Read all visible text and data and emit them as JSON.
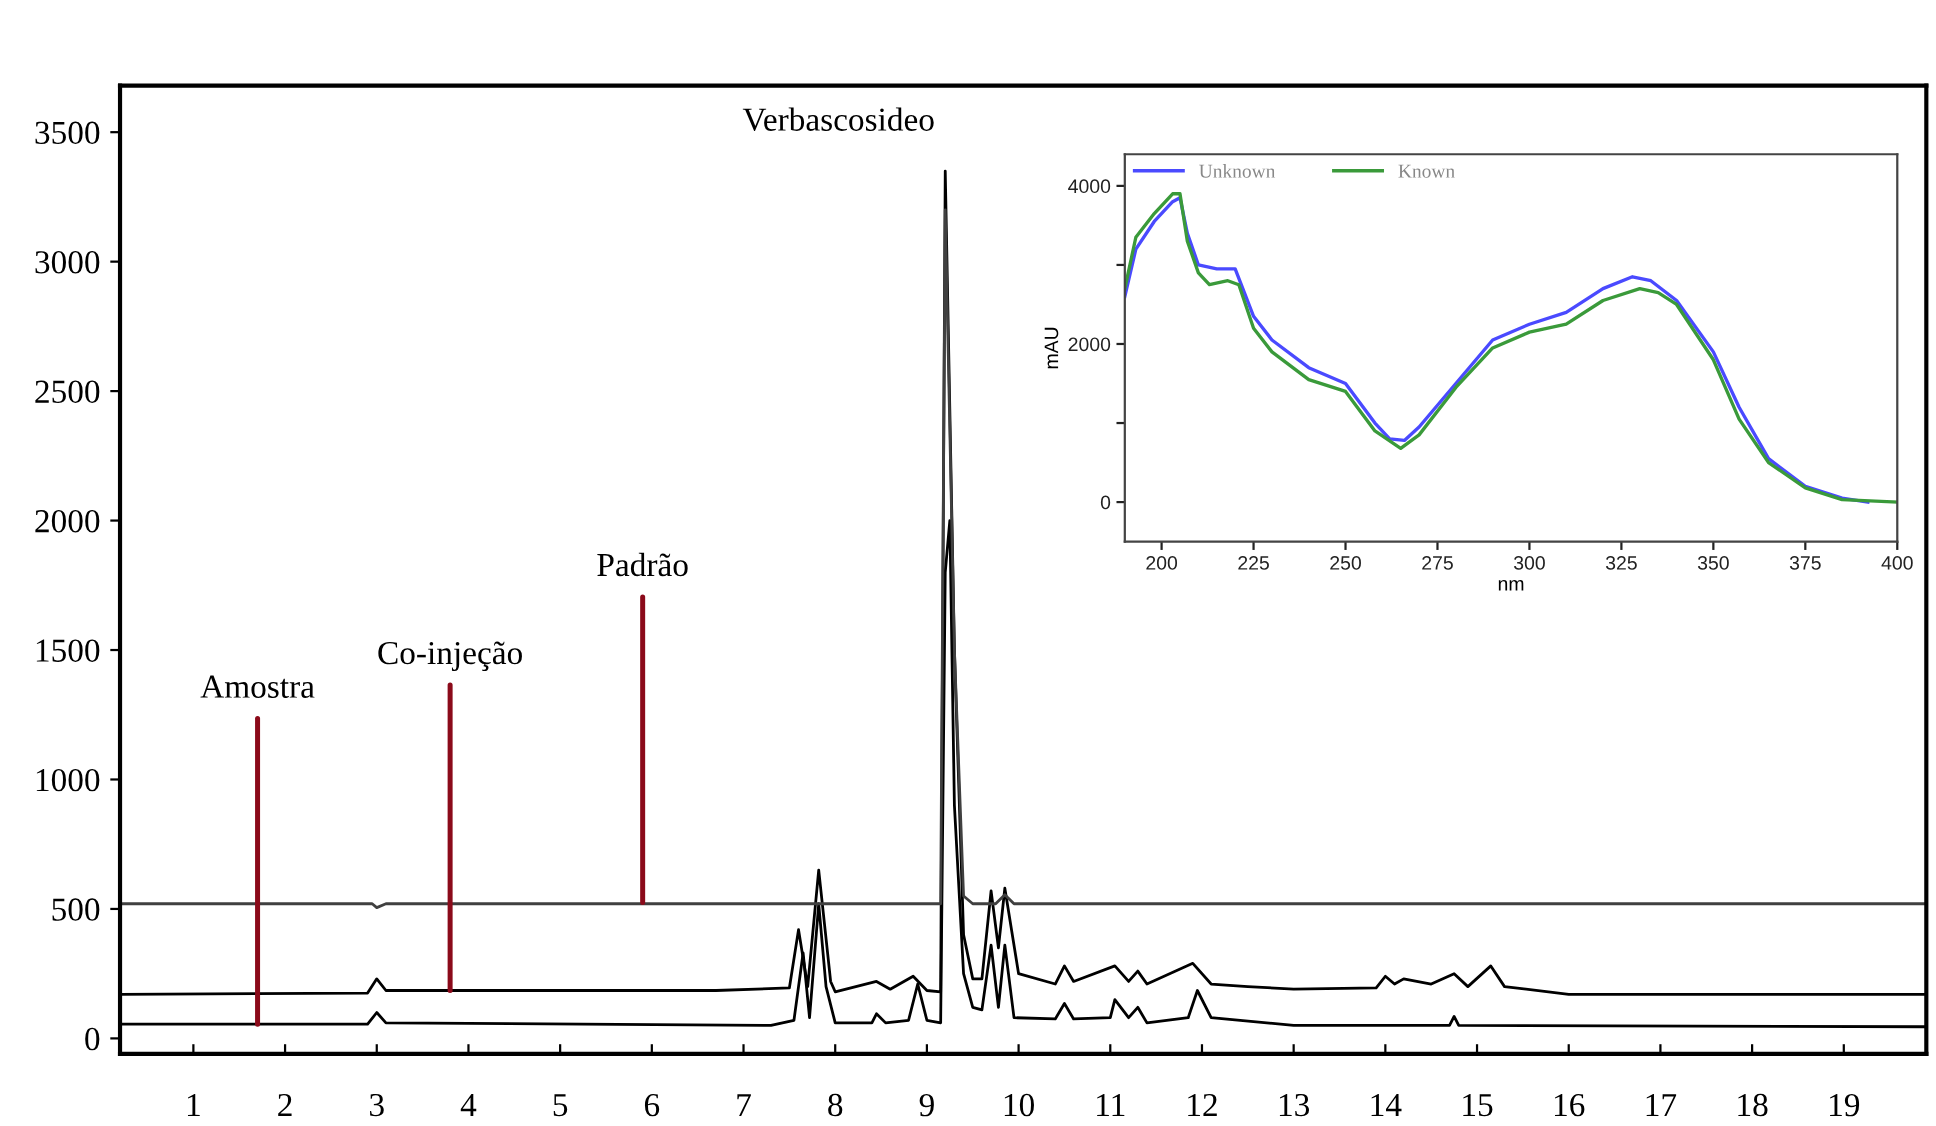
{
  "chart_data": [
    {
      "type": "line",
      "xlim": [
        0.2,
        19.9
      ],
      "ylim": [
        -60,
        3680
      ],
      "xticks": [
        1,
        2,
        3,
        4,
        5,
        6,
        7,
        8,
        9,
        10,
        11,
        12,
        13,
        14,
        15,
        16,
        17,
        18,
        19
      ],
      "yticks": [
        0,
        500,
        1000,
        1500,
        2000,
        2500,
        3000,
        3500
      ],
      "series": [
        {
          "color": "#000000",
          "x": [
            0.2,
            2.9,
            3.0,
            3.1,
            7.3,
            7.55,
            7.65,
            7.72,
            7.82,
            7.9,
            8.0,
            8.4,
            8.45,
            8.55,
            8.8,
            8.9,
            9.0,
            9.15,
            9.2,
            9.25,
            9.3,
            9.4,
            9.5,
            9.6,
            9.7,
            9.78,
            9.85,
            9.95,
            10.4,
            10.5,
            10.6,
            11.0,
            11.05,
            11.2,
            11.3,
            11.4,
            11.85,
            11.95,
            12.1,
            13.0,
            14.7,
            14.75,
            14.8,
            19.9
          ],
          "values": [
            55,
            55,
            100,
            60,
            50,
            70,
            330,
            80,
            520,
            200,
            60,
            60,
            95,
            60,
            70,
            210,
            70,
            60,
            1800,
            2000,
            900,
            250,
            120,
            110,
            360,
            120,
            360,
            80,
            75,
            135,
            75,
            80,
            150,
            80,
            120,
            60,
            80,
            185,
            80,
            50,
            50,
            85,
            50,
            45
          ]
        },
        {
          "color": "#000000",
          "x": [
            0.2,
            2.9,
            3.0,
            3.1,
            6.7,
            7.5,
            7.6,
            7.7,
            7.82,
            7.95,
            8.0,
            8.45,
            8.6,
            8.85,
            9.0,
            9.15,
            9.2,
            9.3,
            9.4,
            9.5,
            9.6,
            9.7,
            9.78,
            9.85,
            10.0,
            10.4,
            10.5,
            10.6,
            11.05,
            11.2,
            11.3,
            11.4,
            11.9,
            12.1,
            12.5,
            13.0,
            13.9,
            14.0,
            14.1,
            14.2,
            14.5,
            14.75,
            14.9,
            15.15,
            15.3,
            16.0,
            19.9
          ],
          "values": [
            170,
            175,
            230,
            185,
            185,
            195,
            420,
            200,
            650,
            220,
            180,
            220,
            190,
            240,
            185,
            180,
            3350,
            1500,
            400,
            230,
            230,
            570,
            350,
            580,
            250,
            210,
            280,
            220,
            280,
            220,
            260,
            210,
            290,
            210,
            200,
            190,
            195,
            240,
            210,
            230,
            210,
            250,
            200,
            280,
            200,
            170,
            170
          ]
        },
        {
          "color": "#404040",
          "x": [
            0.2,
            2.95,
            3.0,
            3.1,
            9.15,
            9.2,
            9.3,
            9.4,
            9.5,
            9.75,
            9.85,
            9.95,
            19.9
          ],
          "values": [
            520,
            520,
            505,
            520,
            520,
            3200,
            1500,
            550,
            520,
            520,
            555,
            520,
            520
          ]
        }
      ],
      "annotations": [
        {
          "text": "Amostra",
          "x": 1.7,
          "y": 55
        },
        {
          "text": "Co-injeção",
          "x": 3.8,
          "y": 185
        },
        {
          "text": "Padrão",
          "x": 5.9,
          "y": 525
        },
        {
          "text": "Verbascosideo",
          "x": 9.25,
          "y": 3350
        }
      ]
    },
    {
      "type": "line",
      "xlabel": "nm",
      "ylabel": "mAU",
      "xlim": [
        190,
        400
      ],
      "ylim": [
        -500,
        4400
      ],
      "xticks": [
        200,
        225,
        250,
        275,
        300,
        325,
        350,
        375,
        400
      ],
      "yticks": [
        0,
        {
          "value": 1000,
          "label": null
        },
        2000,
        {
          "value": 3000,
          "label": null
        },
        4000
      ],
      "legend": "top left",
      "series": [
        {
          "name": "Unknown",
          "color": "#4a4aff",
          "x": [
            190,
            193,
            198,
            203,
            205,
            207,
            210,
            215,
            220,
            225,
            230,
            240,
            250,
            258,
            262,
            266,
            270,
            280,
            290,
            300,
            310,
            320,
            328,
            333,
            340,
            350,
            357,
            365,
            375,
            385,
            392
          ],
          "values": [
            2600,
            3200,
            3550,
            3800,
            3850,
            3400,
            3000,
            2950,
            2950,
            2350,
            2050,
            1700,
            1500,
            1000,
            800,
            780,
            950,
            1500,
            2050,
            2250,
            2400,
            2700,
            2850,
            2800,
            2550,
            1900,
            1200,
            550,
            200,
            50,
            0
          ]
        },
        {
          "name": "Known",
          "color": "#3a9a3a",
          "x": [
            190,
            193,
            198,
            203,
            205,
            207,
            210,
            213,
            218,
            221,
            225,
            230,
            240,
            250,
            258,
            265,
            270,
            280,
            290,
            300,
            310,
            320,
            330,
            335,
            340,
            350,
            357,
            365,
            375,
            385,
            400
          ],
          "values": [
            2700,
            3350,
            3650,
            3900,
            3900,
            3300,
            2900,
            2750,
            2800,
            2750,
            2200,
            1900,
            1550,
            1400,
            900,
            680,
            850,
            1450,
            1950,
            2150,
            2250,
            2550,
            2700,
            2650,
            2500,
            1800,
            1050,
            500,
            180,
            30,
            0
          ]
        }
      ]
    }
  ]
}
